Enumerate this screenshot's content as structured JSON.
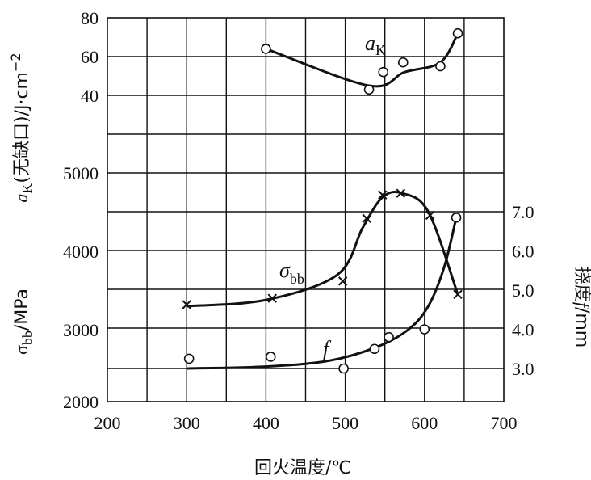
{
  "chart_data": {
    "type": "line",
    "xlabel": "回火温度/℃",
    "x_ticks": [
      "200",
      "300",
      "400",
      "500",
      "600",
      "700"
    ],
    "xlim": [
      200,
      700
    ],
    "panels": {
      "ak": {
        "ylabel": "aK(无缺口)/J·cm⁻²",
        "ticks": [
          "40",
          "60",
          "80"
        ],
        "ylim": [
          40,
          80
        ],
        "series": [
          {
            "name": "aK",
            "marker": "circle",
            "points": [
              [
                400,
                64
              ],
              [
                530,
                43
              ],
              [
                548,
                52
              ],
              [
                573,
                57
              ],
              [
                620,
                55
              ],
              [
                642,
                72
              ]
            ],
            "curve": [
              [
                400,
                64
              ],
              [
                530,
                45
              ],
              [
                575,
                52
              ],
              [
                620,
                57
              ],
              [
                642,
                72
              ]
            ]
          }
        ]
      },
      "strength": {
        "ylabel": "σbb/MPa",
        "ticks": [
          "2000",
          "3000",
          "4000",
          "5000"
        ],
        "ylim": [
          2000,
          5000
        ],
        "series": [
          {
            "name": "σbb",
            "marker": "x",
            "points": [
              [
                300,
                3320
              ],
              [
                408,
                3400
              ],
              [
                497,
                3620
              ],
              [
                527,
                4420
              ],
              [
                547,
                4720
              ],
              [
                570,
                4740
              ],
              [
                607,
                4460
              ],
              [
                642,
                3450
              ]
            ],
            "curve": [
              [
                300,
                3300
              ],
              [
                400,
                3380
              ],
              [
                490,
                3700
              ],
              [
                522,
                4300
              ],
              [
                547,
                4690
              ],
              [
                572,
                4740
              ],
              [
                605,
                4500
              ],
              [
                642,
                3450
              ]
            ]
          }
        ]
      },
      "deflection": {
        "ylabel": "挠度f/mm",
        "ticks": [
          "3.0",
          "4.0",
          "5.0",
          "6.0",
          "7.0"
        ],
        "ylim": [
          3.0,
          7.0
        ],
        "series": [
          {
            "name": "f",
            "marker": "circle",
            "points": [
              [
                303,
                3.25
              ],
              [
                406,
                3.3
              ],
              [
                498,
                3.0
              ],
              [
                537,
                3.5
              ],
              [
                555,
                3.8
              ],
              [
                600,
                4.0
              ],
              [
                640,
                6.85
              ]
            ],
            "curve": [
              [
                300,
                3.0
              ],
              [
                400,
                3.05
              ],
              [
                480,
                3.2
              ],
              [
                540,
                3.55
              ],
              [
                580,
                4.0
              ],
              [
                605,
                4.6
              ],
              [
                625,
                5.6
              ],
              [
                640,
                6.85
              ]
            ]
          }
        ]
      }
    }
  }
}
